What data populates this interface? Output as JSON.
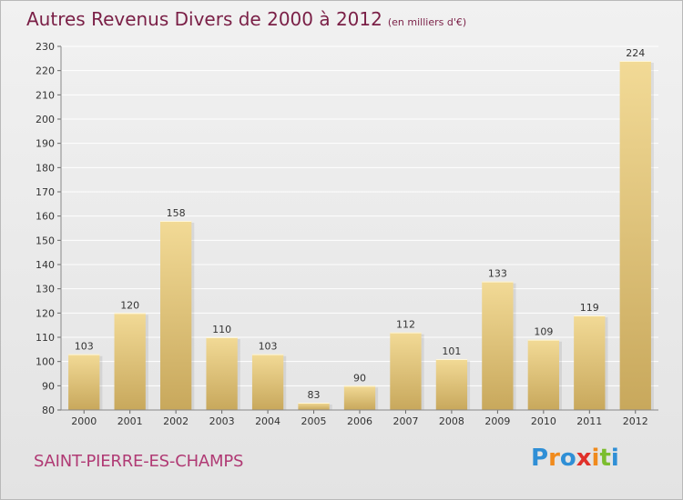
{
  "header": {
    "title": "Autres Revenus Divers de 2000 à 2012",
    "unit": "(en milliers d'€)"
  },
  "commune": "SAINT-PIERRE-ES-CHAMPS",
  "logo": {
    "text": "Proxiti",
    "letters": [
      {
        "ch": "P",
        "color": "#2f8fd6"
      },
      {
        "ch": "r",
        "color": "#f08a1c"
      },
      {
        "ch": "o",
        "color": "#2f8fd6"
      },
      {
        "ch": "x",
        "color": "#e0302a"
      },
      {
        "ch": "i",
        "color": "#f08a1c"
      },
      {
        "ch": "t",
        "color": "#7cbd2e"
      },
      {
        "ch": "i",
        "color": "#2f8fd6"
      }
    ]
  },
  "colors": {
    "title": "#7a1f46",
    "commune": "#b03a74",
    "bar_light": "#f2da96",
    "bar_dark": "#c8a85c",
    "grid": "#ffffff",
    "axis_text": "#333333"
  },
  "chart_data": {
    "type": "bar",
    "categories": [
      "2000",
      "2001",
      "2002",
      "2003",
      "2004",
      "2005",
      "2006",
      "2007",
      "2008",
      "2009",
      "2010",
      "2011",
      "2012"
    ],
    "values": [
      103,
      120,
      158,
      110,
      103,
      83,
      90,
      112,
      101,
      133,
      109,
      119,
      224
    ],
    "ylim": [
      80,
      230
    ],
    "yticks": [
      80,
      90,
      100,
      110,
      120,
      130,
      140,
      150,
      160,
      170,
      180,
      190,
      200,
      210,
      220,
      230
    ],
    "grid": true,
    "data_labels": true
  }
}
